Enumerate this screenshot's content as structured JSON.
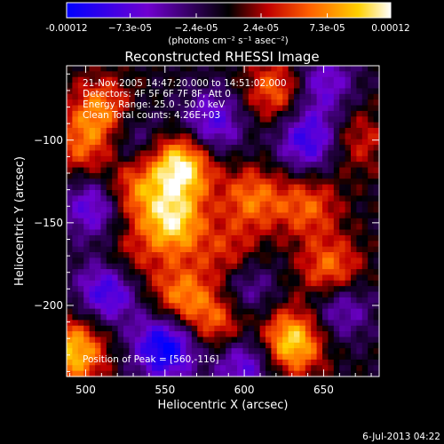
{
  "chart_data": {
    "type": "heatmap",
    "title": "Reconstructed RHESSI Image",
    "xlabel": "Heliocentric X (arcsec)",
    "ylabel": "Heliocentric Y (arcsec)",
    "xlim": [
      488,
      685
    ],
    "ylim": [
      -243,
      -55
    ],
    "x_ticks": [
      500,
      550,
      600,
      650
    ],
    "y_ticks": [
      -100,
      -150,
      -200
    ],
    "colorbar": {
      "label": "(photons cm⁻² s⁻¹ asec⁻²)",
      "range": [
        -0.00012,
        0.00012
      ],
      "ticks": [
        -0.00012,
        -7.3e-05,
        -2.4e-05,
        2.4e-05,
        7.3e-05,
        0.00012
      ],
      "tick_labels": [
        "-0.00012",
        "−7.3e-05",
        "−2.4e-05",
        "2.4e-05",
        "7.3e-05",
        "0.00012"
      ],
      "colors": [
        "#0000ff",
        "#7000d0",
        "#000000",
        "#c00000",
        "#ff6000",
        "#ffd000",
        "#ffffff"
      ]
    },
    "annotations": {
      "time": "21-Nov-2005 14:47:20.000 to 14:51:02.000",
      "detectors": "Detectors: 4F 5F 6F 7F 8F, Att 0",
      "energy": "Energy Range: 25.0 - 50.0 keV",
      "clean": "Clean     Total counts: 4.26E+03",
      "peak": "Position of Peak = [560,-116]"
    },
    "peak": [
      560,
      -116
    ],
    "sources": [
      {
        "x": 560,
        "y": -116,
        "amp": 1.0
      },
      {
        "x": 555,
        "y": -150,
        "amp": 0.85
      },
      {
        "x": 530,
        "y": -130,
        "amp": 0.55
      },
      {
        "x": 510,
        "y": -82,
        "amp": 0.6
      },
      {
        "x": 498,
        "y": -105,
        "amp": 0.45
      },
      {
        "x": 620,
        "y": -70,
        "amp": 0.55
      },
      {
        "x": 605,
        "y": -135,
        "amp": 0.55
      },
      {
        "x": 640,
        "y": -140,
        "amp": 0.5
      },
      {
        "x": 655,
        "y": -180,
        "amp": 0.65
      },
      {
        "x": 630,
        "y": -222,
        "amp": 0.9
      },
      {
        "x": 560,
        "y": -195,
        "amp": 0.6
      },
      {
        "x": 585,
        "y": -210,
        "amp": 0.55
      },
      {
        "x": 493,
        "y": -228,
        "amp": 0.8
      },
      {
        "x": 525,
        "y": -175,
        "amp": 0.4
      },
      {
        "x": 672,
        "y": -100,
        "amp": 0.35
      },
      {
        "x": 590,
        "y": -170,
        "amp": 0.4
      },
      {
        "x": 550,
        "y": -225,
        "amp": -0.95
      },
      {
        "x": 515,
        "y": -190,
        "amp": -0.8
      },
      {
        "x": 505,
        "y": -140,
        "amp": -0.6
      },
      {
        "x": 580,
        "y": -90,
        "amp": -0.6
      },
      {
        "x": 640,
        "y": -100,
        "amp": -0.7
      },
      {
        "x": 660,
        "y": -200,
        "amp": -0.55
      },
      {
        "x": 600,
        "y": -235,
        "amp": -0.6
      },
      {
        "x": 650,
        "y": -65,
        "amp": -0.5
      },
      {
        "x": 530,
        "y": -100,
        "amp": -0.35
      },
      {
        "x": 600,
        "y": -190,
        "amp": -0.45
      }
    ]
  },
  "footer": {
    "date": "6-Jul-2013 04:22"
  }
}
